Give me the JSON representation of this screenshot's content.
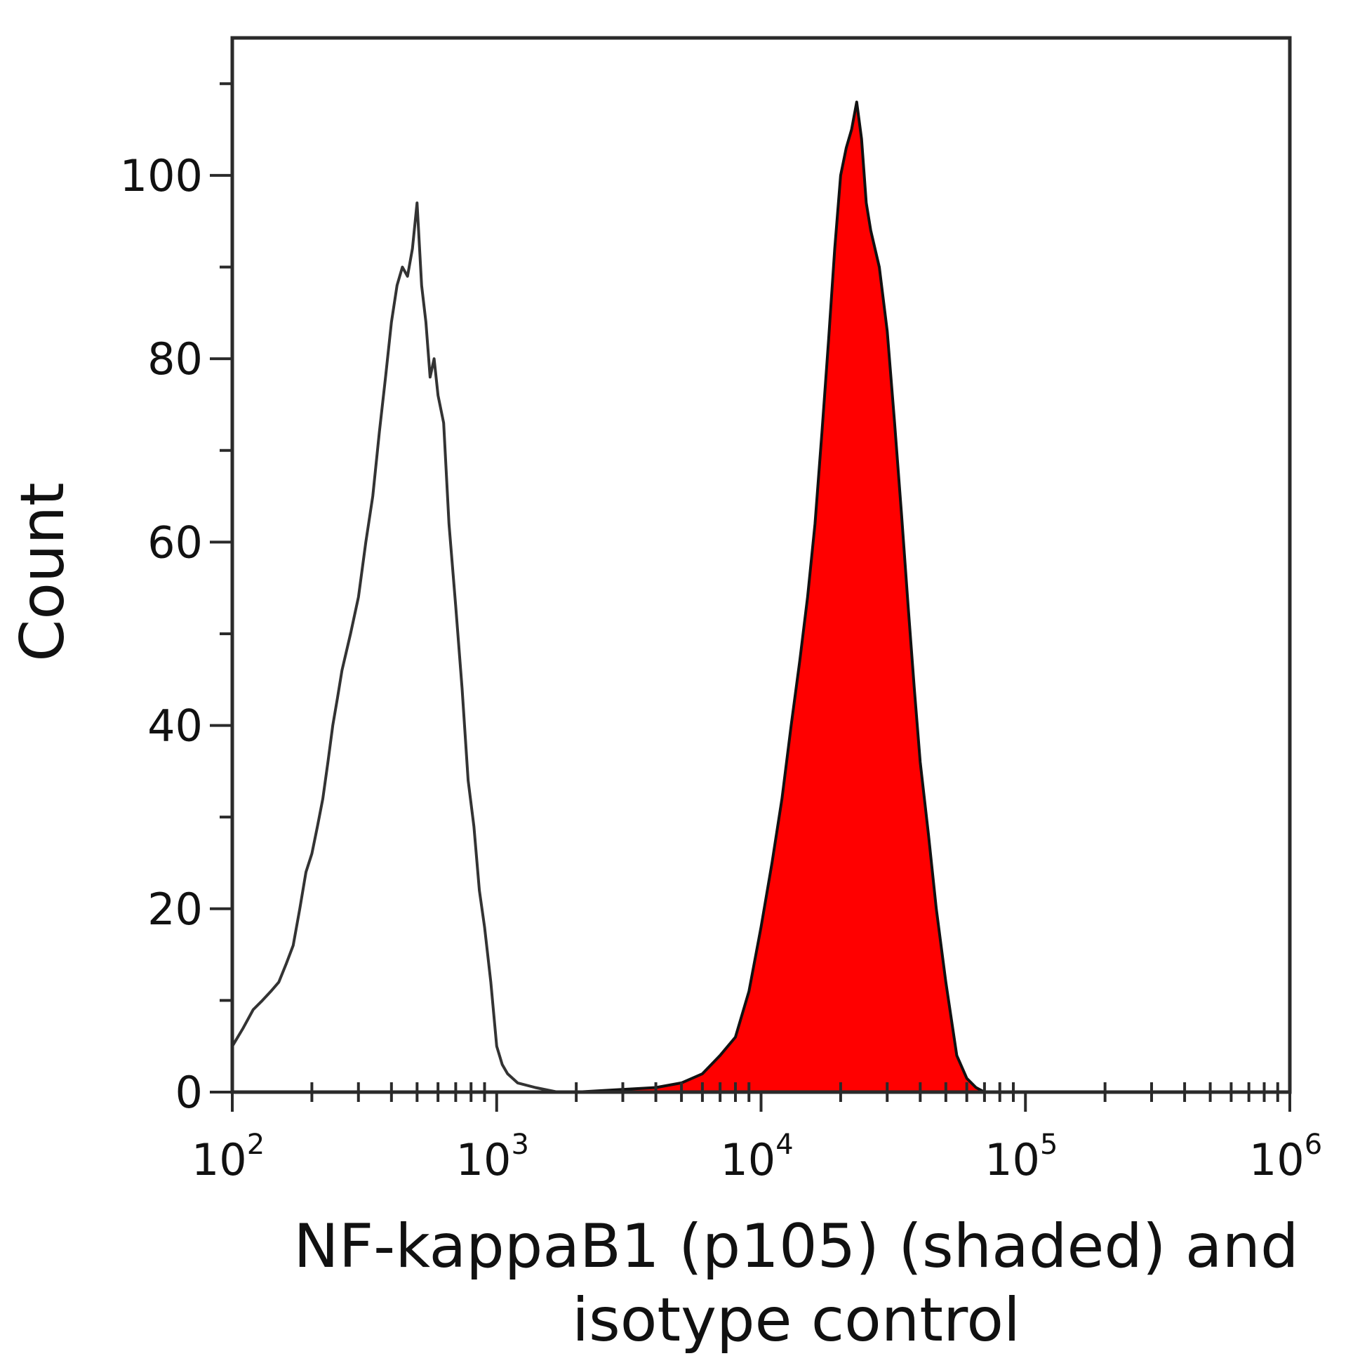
{
  "chart_data": {
    "type": "area",
    "title": "",
    "xlabel_lines": [
      "NF-kappaB1 (p105) (shaded) and",
      "isotype control"
    ],
    "ylabel": "Count",
    "x_scale": "log",
    "xlim": [
      100,
      1000000
    ],
    "ylim": [
      0,
      115
    ],
    "x_ticks": [
      {
        "base": "10",
        "exp": "2"
      },
      {
        "base": "10",
        "exp": "3"
      },
      {
        "base": "10",
        "exp": "4"
      },
      {
        "base": "10",
        "exp": "5"
      },
      {
        "base": "10",
        "exp": "6"
      }
    ],
    "y_ticks": [
      "0",
      "20",
      "40",
      "60",
      "80",
      "100"
    ],
    "grid": false,
    "legend": "none",
    "series": [
      {
        "style": "outline",
        "color": "#333333",
        "points": [
          [
            100,
            5
          ],
          [
            110,
            7
          ],
          [
            120,
            9
          ],
          [
            130,
            10
          ],
          [
            140,
            11
          ],
          [
            150,
            12
          ],
          [
            160,
            14
          ],
          [
            170,
            16
          ],
          [
            180,
            20
          ],
          [
            190,
            24
          ],
          [
            200,
            26
          ],
          [
            210,
            29
          ],
          [
            220,
            32
          ],
          [
            230,
            36
          ],
          [
            240,
            40
          ],
          [
            250,
            43
          ],
          [
            260,
            46
          ],
          [
            280,
            50
          ],
          [
            300,
            54
          ],
          [
            320,
            60
          ],
          [
            340,
            65
          ],
          [
            360,
            72
          ],
          [
            380,
            78
          ],
          [
            400,
            84
          ],
          [
            420,
            88
          ],
          [
            440,
            90
          ],
          [
            460,
            89
          ],
          [
            480,
            92
          ],
          [
            500,
            97
          ],
          [
            520,
            88
          ],
          [
            540,
            84
          ],
          [
            560,
            78
          ],
          [
            580,
            80
          ],
          [
            600,
            76
          ],
          [
            630,
            73
          ],
          [
            660,
            62
          ],
          [
            700,
            53
          ],
          [
            740,
            44
          ],
          [
            780,
            34
          ],
          [
            820,
            29
          ],
          [
            860,
            22
          ],
          [
            900,
            18
          ],
          [
            950,
            12
          ],
          [
            1000,
            5
          ],
          [
            1050,
            3
          ],
          [
            1100,
            2
          ],
          [
            1200,
            1
          ],
          [
            1400,
            0.5
          ],
          [
            1700,
            0
          ],
          [
            100000,
            0
          ],
          [
            1000000,
            0
          ]
        ]
      },
      {
        "style": "shaded",
        "color": "#ff0000",
        "points": [
          [
            100,
            0
          ],
          [
            2000,
            0
          ],
          [
            4000,
            0.5
          ],
          [
            5000,
            1
          ],
          [
            6000,
            2
          ],
          [
            7000,
            4
          ],
          [
            8000,
            6
          ],
          [
            9000,
            11
          ],
          [
            10000,
            18
          ],
          [
            11000,
            25
          ],
          [
            12000,
            32
          ],
          [
            13000,
            40
          ],
          [
            14000,
            47
          ],
          [
            15000,
            54
          ],
          [
            16000,
            62
          ],
          [
            17000,
            72
          ],
          [
            18000,
            82
          ],
          [
            19000,
            92
          ],
          [
            20000,
            100
          ],
          [
            21000,
            103
          ],
          [
            22000,
            105
          ],
          [
            23000,
            108
          ],
          [
            24000,
            104
          ],
          [
            25000,
            97
          ],
          [
            26000,
            94
          ],
          [
            28000,
            90
          ],
          [
            30000,
            83
          ],
          [
            32000,
            73
          ],
          [
            34000,
            63
          ],
          [
            36000,
            53
          ],
          [
            38000,
            44
          ],
          [
            40000,
            36
          ],
          [
            43000,
            28
          ],
          [
            46000,
            20
          ],
          [
            50000,
            12
          ],
          [
            55000,
            4
          ],
          [
            60000,
            1.5
          ],
          [
            65000,
            0.5
          ],
          [
            70000,
            0
          ],
          [
            1000000,
            0
          ]
        ]
      }
    ]
  }
}
